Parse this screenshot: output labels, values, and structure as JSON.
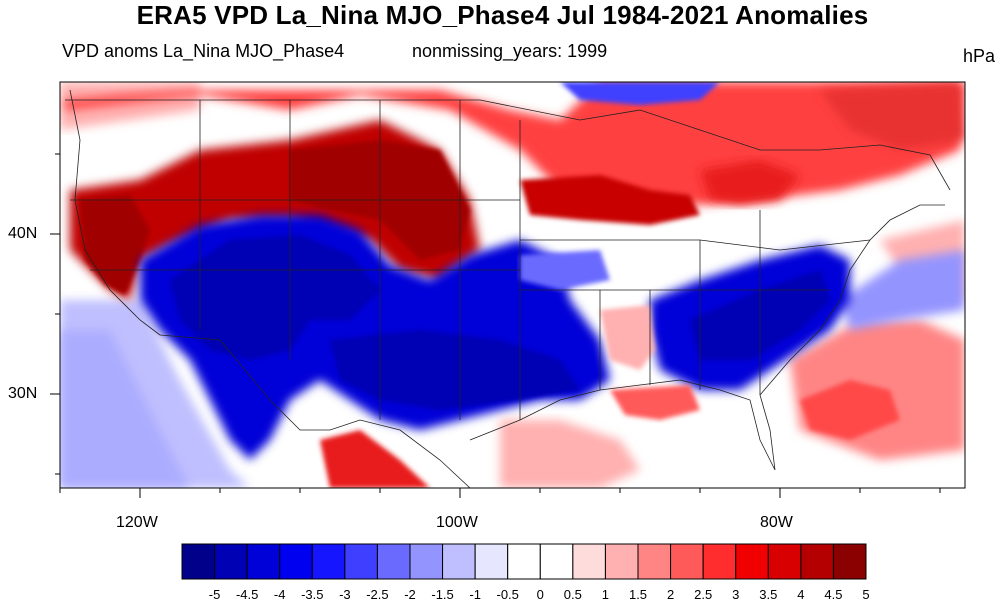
{
  "title": "ERA5 VPD La_Nina MJO_Phase4 Jul 1984-2021 Anomalies",
  "subtitle_left": "VPD anoms La_Nina MJO_Phase4",
  "subtitle_center": "nonmissing_years: 1999",
  "units": "hPa",
  "lat_labels": [
    "40N",
    "30N"
  ],
  "lon_labels": [
    "120W",
    "100W",
    "80W"
  ],
  "colorbar": {
    "labels": [
      "-5",
      "-4.5",
      "-4",
      "-3.5",
      "-3",
      "-2.5",
      "-2",
      "-1.5",
      "-1",
      "-0.5",
      "0",
      "0.5",
      "1",
      "1.5",
      "2",
      "2.5",
      "3",
      "3.5",
      "4",
      "4.5",
      "5"
    ],
    "colors": [
      "#00008b",
      "#0000b4",
      "#0000d8",
      "#0000f0",
      "#1515ff",
      "#3f3fff",
      "#6a6aff",
      "#9494ff",
      "#bfbfff",
      "#e6e6ff",
      "#ffffff",
      "#ffffff",
      "#ffdcdc",
      "#ffb0b0",
      "#ff8585",
      "#ff5a5a",
      "#ff2d2d",
      "#f00000",
      "#d80000",
      "#b40000",
      "#8b0000"
    ]
  },
  "colors": {
    "strong_pos": "#a80000",
    "pos": "#e81a1a",
    "weak_pos": "#ffb0b0",
    "neutral": "#ffffff",
    "weak_neg": "#bfbfff",
    "neg": "#1a1aff",
    "strong_neg": "#0000b0"
  }
}
